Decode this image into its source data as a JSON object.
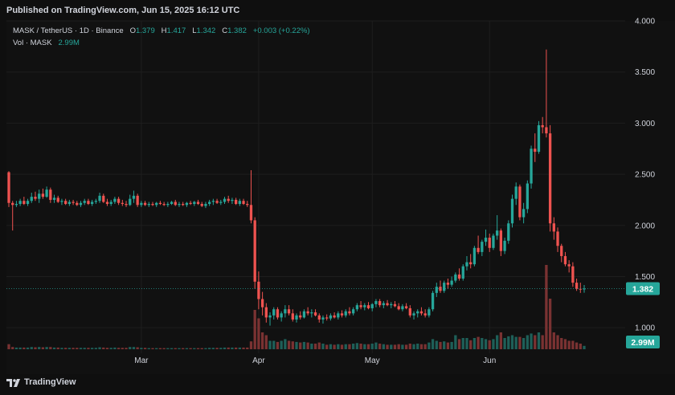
{
  "header": {
    "published": "Published on TradingView.com, Jun 15, 2025 16:12 UTC"
  },
  "legend": {
    "symbol": "MASK / TetherUS · 1D · Binance",
    "open_label": "O",
    "open": "1.379",
    "high_label": "H",
    "high": "1.417",
    "low_label": "L",
    "low": "1.342",
    "close_label": "C",
    "close": "1.382",
    "change": "+0.003 (+0.22%)",
    "vol_label": "Vol · MASK",
    "vol": "2.99M"
  },
  "footer": {
    "brand": "TradingView"
  },
  "colors": {
    "up": "#26a69a",
    "down": "#ef5350",
    "up_vol": "#1e5f58",
    "down_vol": "#7a3232",
    "grid": "#1e1e1e",
    "background": "#111111"
  },
  "chart_data": {
    "type": "candlestick",
    "y_axis": {
      "ticks": [
        "1.000",
        "1.500",
        "2.000",
        "2.500",
        "3.000",
        "3.500",
        "4.000"
      ],
      "min": 0.75,
      "max": 4.0,
      "position": "right"
    },
    "x_axis": {
      "ticks": [
        {
          "label": "Mar",
          "day": 35
        },
        {
          "label": "Apr",
          "day": 66
        },
        {
          "label": "May",
          "day": 96
        },
        {
          "label": "Jun",
          "day": 127
        }
      ]
    },
    "last_price": "1.382",
    "last_volume": "2.99M",
    "candles": [
      [
        2.52,
        2.53,
        2.18,
        2.22,
        0.9
      ],
      [
        2.22,
        2.24,
        1.95,
        2.2,
        0.4
      ],
      [
        2.2,
        2.24,
        2.18,
        2.21,
        0.3
      ],
      [
        2.21,
        2.26,
        2.19,
        2.24,
        0.3
      ],
      [
        2.24,
        2.28,
        2.2,
        2.21,
        0.3
      ],
      [
        2.21,
        2.26,
        2.19,
        2.24,
        0.3
      ],
      [
        2.24,
        2.32,
        2.22,
        2.28,
        0.4
      ],
      [
        2.28,
        2.33,
        2.24,
        2.26,
        0.35
      ],
      [
        2.26,
        2.35,
        2.22,
        2.31,
        0.4
      ],
      [
        2.31,
        2.36,
        2.26,
        2.28,
        0.35
      ],
      [
        2.28,
        2.38,
        2.27,
        2.35,
        0.4
      ],
      [
        2.35,
        2.37,
        2.22,
        2.25,
        0.4
      ],
      [
        2.25,
        2.3,
        2.22,
        2.27,
        0.3
      ],
      [
        2.27,
        2.29,
        2.22,
        2.23,
        0.3
      ],
      [
        2.23,
        2.26,
        2.2,
        2.24,
        0.25
      ],
      [
        2.24,
        2.26,
        2.2,
        2.21,
        0.25
      ],
      [
        2.21,
        2.25,
        2.19,
        2.23,
        0.25
      ],
      [
        2.23,
        2.25,
        2.2,
        2.22,
        0.25
      ],
      [
        2.22,
        2.24,
        2.19,
        2.2,
        0.25
      ],
      [
        2.2,
        2.24,
        2.18,
        2.22,
        0.25
      ],
      [
        2.22,
        2.26,
        2.2,
        2.24,
        0.25
      ],
      [
        2.24,
        2.26,
        2.2,
        2.21,
        0.25
      ],
      [
        2.21,
        2.25,
        2.19,
        2.23,
        0.25
      ],
      [
        2.23,
        2.26,
        2.21,
        2.24,
        0.25
      ],
      [
        2.24,
        2.32,
        2.22,
        2.29,
        0.35
      ],
      [
        2.29,
        2.31,
        2.22,
        2.23,
        0.3
      ],
      [
        2.23,
        2.26,
        2.19,
        2.21,
        0.25
      ],
      [
        2.21,
        2.25,
        2.19,
        2.23,
        0.25
      ],
      [
        2.23,
        2.28,
        2.21,
        2.26,
        0.3
      ],
      [
        2.26,
        2.28,
        2.2,
        2.22,
        0.25
      ],
      [
        2.22,
        2.25,
        2.19,
        2.21,
        0.25
      ],
      [
        2.21,
        2.24,
        2.18,
        2.2,
        0.25
      ],
      [
        2.2,
        2.3,
        2.19,
        2.26,
        0.4
      ],
      [
        2.26,
        2.34,
        2.22,
        2.29,
        0.4
      ],
      [
        2.29,
        2.31,
        2.18,
        2.2,
        0.35
      ],
      [
        2.2,
        2.24,
        2.18,
        2.22,
        0.25
      ],
      [
        2.22,
        2.24,
        2.19,
        2.2,
        0.25
      ],
      [
        2.2,
        2.23,
        2.18,
        2.21,
        0.2
      ],
      [
        2.21,
        2.23,
        2.19,
        2.2,
        0.2
      ],
      [
        2.2,
        2.23,
        2.18,
        2.22,
        0.2
      ],
      [
        2.22,
        2.24,
        2.2,
        2.21,
        0.2
      ],
      [
        2.21,
        2.23,
        2.19,
        2.2,
        0.2
      ],
      [
        2.2,
        2.23,
        2.18,
        2.21,
        0.2
      ],
      [
        2.21,
        2.24,
        2.2,
        2.23,
        0.2
      ],
      [
        2.23,
        2.25,
        2.19,
        2.2,
        0.2
      ],
      [
        2.2,
        2.23,
        2.18,
        2.21,
        0.2
      ],
      [
        2.21,
        2.23,
        2.19,
        2.2,
        0.2
      ],
      [
        2.2,
        2.23,
        2.18,
        2.22,
        0.2
      ],
      [
        2.22,
        2.24,
        2.2,
        2.21,
        0.2
      ],
      [
        2.21,
        2.24,
        2.19,
        2.23,
        0.2
      ],
      [
        2.23,
        2.25,
        2.2,
        2.21,
        0.2
      ],
      [
        2.21,
        2.23,
        2.18,
        2.19,
        0.2
      ],
      [
        2.19,
        2.23,
        2.17,
        2.21,
        0.2
      ],
      [
        2.21,
        2.25,
        2.19,
        2.23,
        0.25
      ],
      [
        2.23,
        2.26,
        2.2,
        2.24,
        0.25
      ],
      [
        2.24,
        2.26,
        2.21,
        2.22,
        0.25
      ],
      [
        2.22,
        2.25,
        2.2,
        2.23,
        0.25
      ],
      [
        2.23,
        2.28,
        2.21,
        2.26,
        0.3
      ],
      [
        2.26,
        2.29,
        2.22,
        2.24,
        0.3
      ],
      [
        2.24,
        2.27,
        2.21,
        2.25,
        0.3
      ],
      [
        2.25,
        2.27,
        2.2,
        2.21,
        0.3
      ],
      [
        2.21,
        2.26,
        2.19,
        2.24,
        0.3
      ],
      [
        2.24,
        2.26,
        2.2,
        2.21,
        0.3
      ],
      [
        2.21,
        2.24,
        2.18,
        2.2,
        0.3
      ],
      [
        2.2,
        2.54,
        2.02,
        2.05,
        1.4
      ],
      [
        2.05,
        2.08,
        1.38,
        1.45,
        7.0
      ],
      [
        1.45,
        1.55,
        1.18,
        1.28,
        5.5
      ],
      [
        1.28,
        1.35,
        1.12,
        1.2,
        3.0
      ],
      [
        1.2,
        1.24,
        1.05,
        1.1,
        2.5
      ],
      [
        1.1,
        1.15,
        1.02,
        1.12,
        1.5
      ],
      [
        1.12,
        1.2,
        1.08,
        1.18,
        1.5
      ],
      [
        1.18,
        1.2,
        1.08,
        1.1,
        1.3
      ],
      [
        1.1,
        1.16,
        1.06,
        1.14,
        1.5
      ],
      [
        1.14,
        1.22,
        1.1,
        1.18,
        1.8
      ],
      [
        1.18,
        1.22,
        1.12,
        1.14,
        1.5
      ],
      [
        1.14,
        1.18,
        1.06,
        1.08,
        1.4
      ],
      [
        1.08,
        1.14,
        1.05,
        1.12,
        1.3
      ],
      [
        1.12,
        1.16,
        1.08,
        1.1,
        1.2
      ],
      [
        1.1,
        1.18,
        1.09,
        1.16,
        1.3
      ],
      [
        1.16,
        1.2,
        1.12,
        1.14,
        1.2
      ],
      [
        1.14,
        1.18,
        1.1,
        1.15,
        1.0
      ],
      [
        1.15,
        1.18,
        1.11,
        1.12,
        1.0
      ],
      [
        1.12,
        1.14,
        1.05,
        1.08,
        1.2
      ],
      [
        1.08,
        1.12,
        1.04,
        1.1,
        1.0
      ],
      [
        1.1,
        1.13,
        1.07,
        1.09,
        0.8
      ],
      [
        1.09,
        1.14,
        1.07,
        1.12,
        0.9
      ],
      [
        1.12,
        1.15,
        1.09,
        1.1,
        0.8
      ],
      [
        1.1,
        1.16,
        1.08,
        1.14,
        0.9
      ],
      [
        1.14,
        1.17,
        1.1,
        1.12,
        0.8
      ],
      [
        1.12,
        1.18,
        1.1,
        1.16,
        0.9
      ],
      [
        1.16,
        1.2,
        1.12,
        1.14,
        0.9
      ],
      [
        1.14,
        1.2,
        1.12,
        1.18,
        1.0
      ],
      [
        1.18,
        1.24,
        1.16,
        1.22,
        1.1
      ],
      [
        1.22,
        1.26,
        1.18,
        1.2,
        1.0
      ],
      [
        1.2,
        1.24,
        1.17,
        1.22,
        0.9
      ],
      [
        1.22,
        1.25,
        1.18,
        1.19,
        0.9
      ],
      [
        1.19,
        1.24,
        1.16,
        1.23,
        1.0
      ],
      [
        1.23,
        1.28,
        1.2,
        1.26,
        1.2
      ],
      [
        1.26,
        1.28,
        1.2,
        1.22,
        1.0
      ],
      [
        1.22,
        1.26,
        1.19,
        1.24,
        0.9
      ],
      [
        1.24,
        1.27,
        1.21,
        1.22,
        0.8
      ],
      [
        1.22,
        1.25,
        1.19,
        1.23,
        0.8
      ],
      [
        1.23,
        1.26,
        1.2,
        1.21,
        0.8
      ],
      [
        1.21,
        1.24,
        1.17,
        1.18,
        0.9
      ],
      [
        1.18,
        1.23,
        1.16,
        1.21,
        0.8
      ],
      [
        1.21,
        1.24,
        1.18,
        1.19,
        0.8
      ],
      [
        1.19,
        1.22,
        1.1,
        1.12,
        1.0
      ],
      [
        1.12,
        1.16,
        1.08,
        1.14,
        0.9
      ],
      [
        1.14,
        1.18,
        1.1,
        1.16,
        1.0
      ],
      [
        1.16,
        1.2,
        1.12,
        1.14,
        0.9
      ],
      [
        1.14,
        1.18,
        1.1,
        1.12,
        0.9
      ],
      [
        1.12,
        1.2,
        1.1,
        1.18,
        1.2
      ],
      [
        1.18,
        1.36,
        1.16,
        1.34,
        1.8
      ],
      [
        1.34,
        1.44,
        1.3,
        1.4,
        1.5
      ],
      [
        1.4,
        1.46,
        1.34,
        1.36,
        1.3
      ],
      [
        1.36,
        1.46,
        1.34,
        1.44,
        1.4
      ],
      [
        1.44,
        1.48,
        1.38,
        1.42,
        1.2
      ],
      [
        1.42,
        1.5,
        1.4,
        1.46,
        1.3
      ],
      [
        1.46,
        1.54,
        1.44,
        1.52,
        2.5
      ],
      [
        1.52,
        1.58,
        1.46,
        1.48,
        1.8
      ],
      [
        1.48,
        1.62,
        1.46,
        1.6,
        2.0
      ],
      [
        1.6,
        1.7,
        1.56,
        1.64,
        2.0
      ],
      [
        1.64,
        1.72,
        1.58,
        1.62,
        1.6
      ],
      [
        1.62,
        1.8,
        1.6,
        1.78,
        2.0
      ],
      [
        1.78,
        1.9,
        1.72,
        1.74,
        2.2
      ],
      [
        1.74,
        1.86,
        1.7,
        1.84,
        2.0
      ],
      [
        1.84,
        1.96,
        1.8,
        1.88,
        1.8
      ],
      [
        1.88,
        1.92,
        1.74,
        1.78,
        1.6
      ],
      [
        1.78,
        1.92,
        1.76,
        1.9,
        1.8
      ],
      [
        1.9,
        2.1,
        1.86,
        1.95,
        2.5
      ],
      [
        1.95,
        1.97,
        1.7,
        1.75,
        3.0
      ],
      [
        1.75,
        1.88,
        1.72,
        1.85,
        2.0
      ],
      [
        1.85,
        2.05,
        1.82,
        2.02,
        2.3
      ],
      [
        2.02,
        2.3,
        1.98,
        2.26,
        2.5
      ],
      [
        2.26,
        2.42,
        2.2,
        2.38,
        2.2
      ],
      [
        2.38,
        2.4,
        2.05,
        2.08,
        2.2
      ],
      [
        2.08,
        2.22,
        2.02,
        2.16,
        2.0
      ],
      [
        2.16,
        2.44,
        2.12,
        2.41,
        2.5
      ],
      [
        2.41,
        2.78,
        2.36,
        2.75,
        2.8
      ],
      [
        2.75,
        2.9,
        2.62,
        2.72,
        2.5
      ],
      [
        2.72,
        3.02,
        2.7,
        2.98,
        3.0
      ],
      [
        2.98,
        3.06,
        2.9,
        2.96,
        2.5
      ],
      [
        2.96,
        3.72,
        2.86,
        2.9,
        15.0
      ],
      [
        2.9,
        2.98,
        1.94,
        2.02,
        9.0
      ],
      [
        2.02,
        2.08,
        1.86,
        1.94,
        3.0
      ],
      [
        1.94,
        1.98,
        1.74,
        1.8,
        2.5
      ],
      [
        1.8,
        1.82,
        1.64,
        1.7,
        2.0
      ],
      [
        1.7,
        1.74,
        1.6,
        1.62,
        1.8
      ],
      [
        1.62,
        1.66,
        1.54,
        1.6,
        1.5
      ],
      [
        1.6,
        1.64,
        1.4,
        1.44,
        1.5
      ],
      [
        1.44,
        1.48,
        1.36,
        1.38,
        1.2
      ],
      [
        1.38,
        1.44,
        1.34,
        1.379,
        1.0
      ],
      [
        1.379,
        1.417,
        1.342,
        1.382,
        0.6
      ]
    ]
  }
}
